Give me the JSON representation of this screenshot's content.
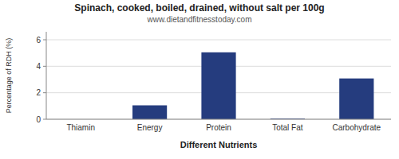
{
  "chart_data": {
    "type": "bar",
    "title": "Spinach, cooked, boiled, drained, without salt per 100g",
    "subtitle": "www.dietandfitnesstoday.com",
    "xlabel": "Different Nutrients",
    "ylabel": "Percentage of RDH (%)",
    "categories": [
      "Thiamin",
      "Energy",
      "Protein",
      "Total Fat",
      "Carbohydrate"
    ],
    "values": [
      0.0,
      1.05,
      5.05,
      0.05,
      3.08
    ],
    "color": "#253c7e",
    "ylim": [
      0,
      6.6
    ],
    "yticks": [
      0,
      2,
      4,
      6
    ],
    "grid": true
  }
}
